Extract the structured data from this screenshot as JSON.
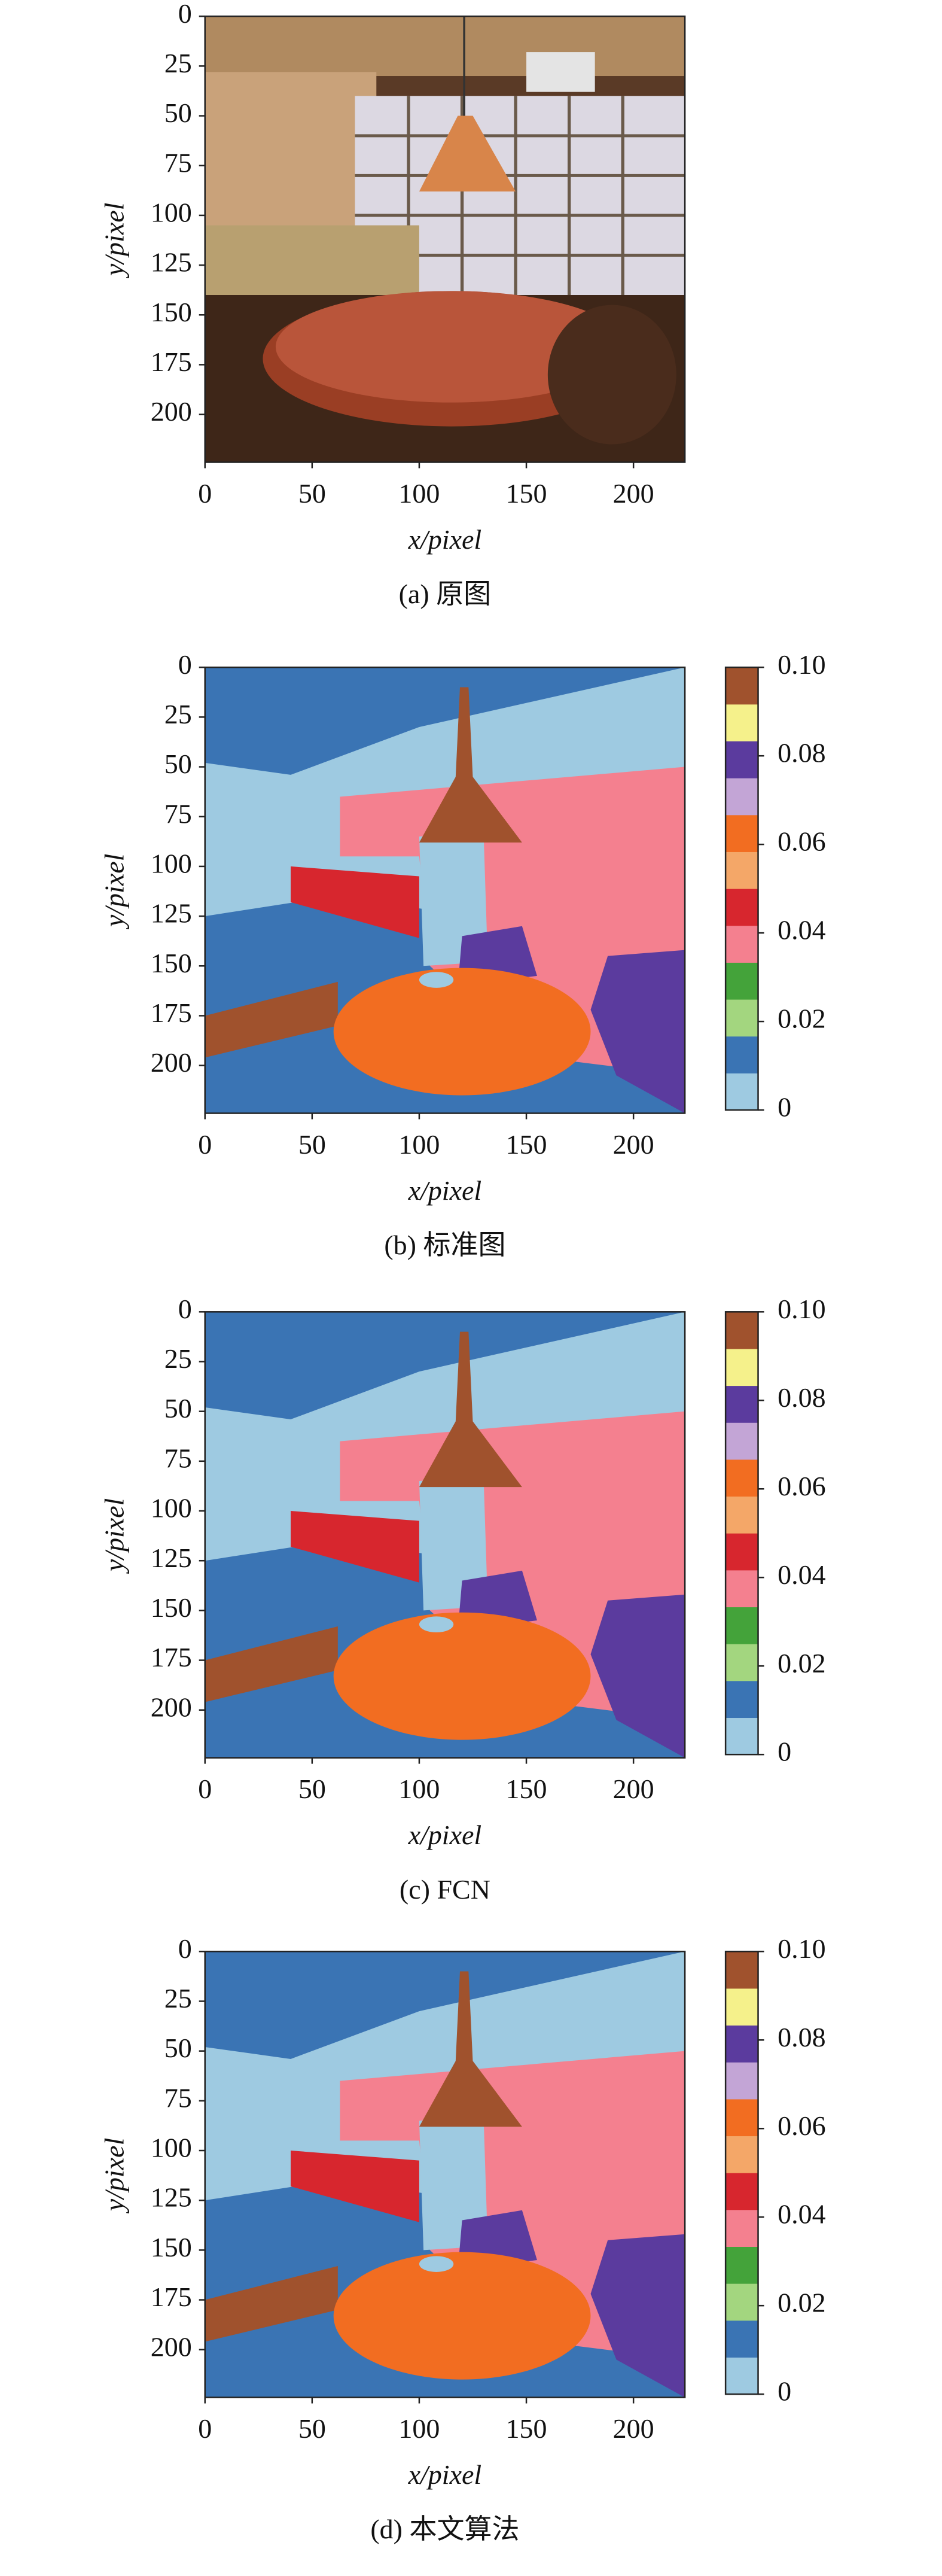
{
  "chart_data": [
    {
      "type": "image",
      "caption": "(a) 原图",
      "xlabel": "x/pixel",
      "ylabel": "y/pixel",
      "xlim": [
        0,
        224
      ],
      "ylim": [
        224,
        0
      ],
      "xticks": [
        0,
        50,
        100,
        150,
        200
      ],
      "yticks": [
        0,
        25,
        50,
        75,
        100,
        125,
        150,
        175,
        200
      ]
    },
    {
      "type": "image",
      "caption": "(b) 标准图",
      "xlabel": "x/pixel",
      "ylabel": "y/pixel",
      "xlim": [
        0,
        224
      ],
      "ylim": [
        224,
        0
      ],
      "xticks": [
        0,
        50,
        100,
        150,
        200
      ],
      "yticks": [
        0,
        25,
        50,
        75,
        100,
        125,
        150,
        175,
        200
      ],
      "colorbar": {
        "colors": [
          "#9ecae1",
          "#3a74b4",
          "#a3d67f",
          "#44a33a",
          "#f4808f",
          "#d7262e",
          "#f4a768",
          "#f26d21",
          "#c3a5d6",
          "#5b3b9e",
          "#f5f18b",
          "#a0522d"
        ],
        "lim": [
          0,
          0.1
        ],
        "ticks": [
          0,
          0.02,
          0.04,
          0.06,
          0.08,
          {
            "value": 0.1,
            "label": "0.10"
          }
        ]
      }
    },
    {
      "type": "image",
      "caption": "(c) FCN",
      "xlabel": "x/pixel",
      "ylabel": "y/pixel",
      "xlim": [
        0,
        224
      ],
      "ylim": [
        224,
        0
      ],
      "xticks": [
        0,
        50,
        100,
        150,
        200
      ],
      "yticks": [
        0,
        25,
        50,
        75,
        100,
        125,
        150,
        175,
        200
      ],
      "colorbar": {
        "colors": [
          "#9ecae1",
          "#3a74b4",
          "#a3d67f",
          "#44a33a",
          "#f4808f",
          "#d7262e",
          "#f4a768",
          "#f26d21",
          "#c3a5d6",
          "#5b3b9e",
          "#f5f18b",
          "#a0522d"
        ],
        "lim": [
          0,
          0.1
        ],
        "ticks": [
          0,
          0.02,
          0.04,
          0.06,
          0.08,
          {
            "value": 0.1,
            "label": "0.10"
          }
        ]
      }
    },
    {
      "type": "image",
      "caption": "(d) 本文算法",
      "xlabel": "x/pixel",
      "ylabel": "y/pixel",
      "xlim": [
        0,
        224
      ],
      "ylim": [
        224,
        0
      ],
      "xticks": [
        0,
        50,
        100,
        150,
        200
      ],
      "yticks": [
        0,
        25,
        50,
        75,
        100,
        125,
        150,
        175,
        200
      ],
      "colorbar": {
        "colors": [
          "#9ecae1",
          "#3a74b4",
          "#a3d67f",
          "#44a33a",
          "#f4808f",
          "#d7262e",
          "#f4a768",
          "#f26d21",
          "#c3a5d6",
          "#5b3b9e",
          "#f5f18b",
          "#a0522d"
        ],
        "lim": [
          0,
          0.1
        ],
        "ticks": [
          0,
          0.02,
          0.04,
          0.06,
          0.08,
          {
            "value": 0.1,
            "label": "0.10"
          }
        ]
      }
    }
  ]
}
